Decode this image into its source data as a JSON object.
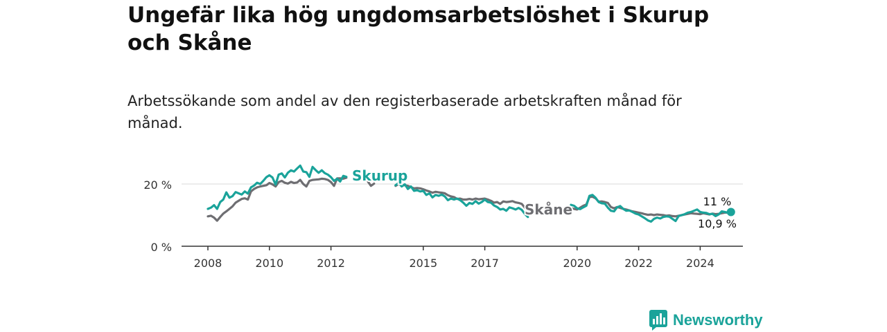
{
  "title": "Ungefär lika hög ungdomsarbetslöshet i Skurup och Skåne",
  "subtitle": "Arbetssökande som andel av den registerbaserade arbetskraften månad för månad.",
  "brand": "Newsworthy",
  "colors": {
    "skurup": "#1aa39a",
    "skane": "#6e6e72",
    "grid": "#d9d9d9",
    "axis": "#333333"
  },
  "chart_data": {
    "type": "line",
    "title": "Ungefär lika hög ungdomsarbetslöshet i Skurup och Skåne",
    "xlabel": "",
    "ylabel": "",
    "xlim": [
      2007.4,
      2025.3
    ],
    "ylim": [
      0,
      20
    ],
    "x_ticks": [
      2008,
      2010,
      2012,
      2015,
      2017,
      2020,
      2022,
      2024
    ],
    "x_tick_labels": [
      "2008",
      "2010",
      "2012",
      "2015",
      "2017",
      "2020",
      "2022",
      "2024"
    ],
    "y_ticks": [
      0,
      20
    ],
    "y_tick_labels": [
      "0 %",
      "20 %"
    ],
    "series": [
      {
        "name": "Skurup",
        "label": "Skurup",
        "end_label": "11 %",
        "segments": [
          {
            "x": [
              2008.0,
              2008.1,
              2008.2,
              2008.3,
              2008.4,
              2008.5,
              2008.6,
              2008.7,
              2008.8,
              2008.9,
              2009.0,
              2009.1,
              2009.2,
              2009.3,
              2009.4,
              2009.5,
              2009.6,
              2009.7,
              2009.8,
              2009.9,
              2010.0,
              2010.1,
              2010.2,
              2010.3,
              2010.4,
              2010.5,
              2010.6,
              2010.7,
              2010.8,
              2010.9,
              2011.0,
              2011.1,
              2011.2,
              2011.3,
              2011.4,
              2011.5,
              2011.6,
              2011.7,
              2011.8,
              2011.9,
              2012.0,
              2012.1,
              2012.2,
              2012.3,
              2012.4,
              2012.5
            ],
            "y": [
              12.0,
              12.4,
              13.2,
              12.0,
              14.2,
              15.0,
              17.3,
              15.6,
              16.1,
              17.4,
              17.0,
              16.6,
              17.6,
              16.9,
              18.9,
              19.5,
              20.4,
              20.0,
              21.0,
              22.2,
              22.8,
              22.1,
              19.8,
              23.0,
              23.4,
              22.1,
              23.6,
              24.4,
              24.0,
              25.0,
              25.9,
              24.0,
              23.8,
              22.3,
              25.5,
              24.5,
              23.6,
              24.4,
              23.5,
              23.0,
              22.2,
              21.0,
              21.7,
              20.8,
              22.6,
              22.3
            ]
          },
          {
            "x": [
              2014.1,
              2014.2,
              2014.3,
              2014.4,
              2014.5,
              2014.6,
              2014.7,
              2014.8,
              2014.9,
              2015.0,
              2015.1,
              2015.2,
              2015.3,
              2015.4,
              2015.5,
              2015.6,
              2015.7,
              2015.8,
              2015.9,
              2016.0,
              2016.1,
              2016.2,
              2016.3,
              2016.4,
              2016.5,
              2016.6,
              2016.7,
              2016.8,
              2016.9,
              2017.0,
              2017.1,
              2017.2,
              2017.3,
              2017.4,
              2017.5,
              2017.6,
              2017.7,
              2017.8,
              2017.9,
              2018.0,
              2018.1,
              2018.2,
              2018.3,
              2018.4
            ],
            "y": [
              19.6,
              20.3,
              19.2,
              19.9,
              18.4,
              19.2,
              17.8,
              18.0,
              17.6,
              17.8,
              16.5,
              17.0,
              15.7,
              16.5,
              16.2,
              16.6,
              16.0,
              14.8,
              15.3,
              15.0,
              15.3,
              14.8,
              14.0,
              13.0,
              13.9,
              13.6,
              14.5,
              13.7,
              14.2,
              15.0,
              14.2,
              14.0,
              13.1,
              12.6,
              11.8,
              12.0,
              11.4,
              12.5,
              12.2,
              11.8,
              12.3,
              11.7,
              10.4,
              9.4
            ]
          },
          {
            "x": [
              2019.8,
              2019.9,
              2020.0,
              2020.1,
              2020.2,
              2020.3,
              2020.4,
              2020.5,
              2020.6,
              2020.7,
              2020.8,
              2020.9,
              2021.0,
              2021.1,
              2021.2,
              2021.3,
              2021.4,
              2021.5,
              2021.6,
              2021.7,
              2021.8,
              2021.9,
              2022.0,
              2022.1,
              2022.2,
              2022.3,
              2022.4,
              2022.5,
              2022.6,
              2022.7,
              2022.8,
              2022.9,
              2023.0,
              2023.1,
              2023.2,
              2023.3,
              2023.4,
              2023.5,
              2023.6,
              2023.7,
              2023.8,
              2023.9,
              2024.0,
              2024.1,
              2024.2,
              2024.3,
              2024.4,
              2024.5,
              2024.6,
              2024.7,
              2024.8,
              2024.9,
              2025.0
            ],
            "y": [
              13.3,
              13.0,
              12.2,
              11.9,
              12.5,
              13.0,
              16.2,
              16.5,
              15.6,
              14.2,
              13.8,
              13.7,
              12.4,
              11.4,
              11.2,
              12.5,
              12.9,
              12.0,
              11.4,
              11.5,
              11.0,
              10.5,
              10.2,
              9.6,
              9.0,
              8.3,
              7.9,
              8.8,
              9.2,
              8.9,
              9.4,
              9.6,
              9.5,
              8.8,
              8.1,
              9.7,
              10.0,
              10.3,
              10.8,
              11.0,
              11.4,
              11.8,
              11.0,
              10.8,
              10.7,
              10.3,
              10.4,
              9.7,
              10.2,
              11.2,
              11.0,
              10.8,
              11.0
            ]
          }
        ]
      },
      {
        "name": "Skåne",
        "label": "Skåne",
        "end_label": "10,9 %",
        "segments": [
          {
            "x": [
              2008.0,
              2008.1,
              2008.2,
              2008.3,
              2008.4,
              2008.5,
              2008.6,
              2008.7,
              2008.8,
              2008.9,
              2009.0,
              2009.1,
              2009.2,
              2009.3,
              2009.4,
              2009.5,
              2009.6,
              2009.7,
              2009.8,
              2009.9,
              2010.0,
              2010.1,
              2010.2,
              2010.3,
              2010.4,
              2010.5,
              2010.6,
              2010.7,
              2010.8,
              2010.9,
              2011.0,
              2011.1,
              2011.2,
              2011.3,
              2011.4,
              2011.5,
              2011.6,
              2011.7,
              2011.8,
              2011.9,
              2012.0,
              2012.1,
              2012.2,
              2012.3,
              2012.4,
              2012.5
            ],
            "y": [
              9.6,
              9.8,
              9.2,
              8.2,
              9.4,
              10.5,
              11.2,
              12.0,
              12.8,
              14.0,
              14.6,
              15.2,
              15.4,
              15.0,
              17.6,
              18.4,
              18.9,
              19.2,
              19.4,
              19.6,
              20.3,
              19.9,
              19.2,
              20.6,
              21.0,
              20.4,
              20.1,
              20.7,
              20.3,
              20.5,
              21.3,
              20.0,
              19.2,
              21.0,
              21.3,
              21.4,
              21.5,
              21.7,
              21.6,
              21.3,
              20.6,
              19.4,
              21.8,
              21.8,
              21.7,
              22.0
            ]
          },
          {
            "x": [
              2013.2,
              2013.3,
              2013.4
            ],
            "y": [
              20.8,
              19.4,
              20.1
            ]
          },
          {
            "x": [
              2014.1,
              2014.2,
              2014.3,
              2014.4,
              2014.5,
              2014.6,
              2014.7,
              2014.8,
              2014.9,
              2015.0,
              2015.1,
              2015.2,
              2015.3,
              2015.4,
              2015.5,
              2015.6,
              2015.7,
              2015.8,
              2015.9,
              2016.0,
              2016.1,
              2016.2,
              2016.3,
              2016.4,
              2016.5,
              2016.6,
              2016.7,
              2016.8,
              2016.9,
              2017.0,
              2017.1,
              2017.2,
              2017.3,
              2017.4,
              2017.5,
              2017.6,
              2017.7,
              2017.8,
              2017.9,
              2018.0,
              2018.1,
              2018.2,
              2018.3,
              2018.4
            ],
            "y": [
              19.4,
              20.0,
              19.8,
              19.6,
              19.4,
              19.0,
              18.6,
              18.7,
              18.6,
              18.3,
              17.9,
              17.6,
              17.2,
              17.5,
              17.3,
              17.2,
              17.0,
              16.4,
              16.0,
              15.8,
              15.2,
              15.3,
              15.0,
              15.0,
              15.2,
              15.0,
              15.3,
              15.1,
              15.2,
              15.3,
              15.0,
              14.6,
              14.0,
              14.2,
              13.6,
              14.4,
              14.2,
              14.3,
              14.5,
              14.1,
              13.9,
              13.6,
              12.4,
              11.8
            ]
          },
          {
            "x": [
              2019.8,
              2019.9,
              2020.0,
              2020.1,
              2020.2,
              2020.3,
              2020.4,
              2020.5,
              2020.6,
              2020.7,
              2020.8,
              2020.9,
              2021.0,
              2021.1,
              2021.2,
              2021.3,
              2021.4,
              2021.5,
              2021.6,
              2021.7,
              2021.8,
              2021.9,
              2022.0,
              2022.1,
              2022.2,
              2022.3,
              2022.4,
              2022.5,
              2022.6,
              2022.7,
              2022.8,
              2022.9,
              2023.0,
              2023.1,
              2023.2,
              2023.3,
              2023.4,
              2023.5,
              2023.6,
              2023.7,
              2023.8,
              2023.9,
              2024.0,
              2024.1,
              2024.2,
              2024.3,
              2024.4,
              2024.5,
              2024.6,
              2024.7,
              2024.8,
              2024.9,
              2025.0
            ],
            "y": [
              12.3,
              12.0,
              11.8,
              12.4,
              13.0,
              13.4,
              15.8,
              15.9,
              15.4,
              14.3,
              14.4,
              14.2,
              13.9,
              12.6,
              12.2,
              12.6,
              12.3,
              12.0,
              11.8,
              11.5,
              11.2,
              11.0,
              10.8,
              10.6,
              10.3,
              10.1,
              10.2,
              10.0,
              10.2,
              10.1,
              10.0,
              9.8,
              9.9,
              9.7,
              9.6,
              9.8,
              10.0,
              10.2,
              10.4,
              10.6,
              10.5,
              10.4,
              10.3,
              10.6,
              10.4,
              10.2,
              10.5,
              10.3,
              10.4,
              10.6,
              10.8,
              10.8,
              10.9
            ]
          }
        ]
      }
    ]
  }
}
